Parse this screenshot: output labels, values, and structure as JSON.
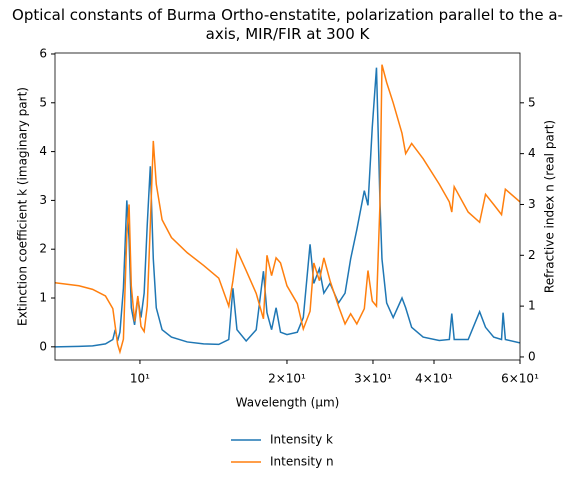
{
  "chart_data": {
    "type": "line",
    "title": "Optical constants of Burma Ortho-enstatite, polarization parallel to the a-axis, MIR/FIR at 300 K",
    "x_label": "Wavelength (μm)",
    "y_label": "Extinction coefficient k (imaginary part)",
    "y2_label": "Refractive index n (real part)",
    "x_scale": "log",
    "legend": "below",
    "xlim": [
      6.7,
      60
    ],
    "ylim": [
      -0.27,
      6.02
    ],
    "y2lim": [
      -0.06,
      5.98
    ],
    "xticks": [
      {
        "value": 10,
        "label": "10¹"
      },
      {
        "value": 20,
        "label": "2×10¹"
      },
      {
        "value": 30,
        "label": "3×10¹"
      },
      {
        "value": 40,
        "label": "4×10¹"
      },
      {
        "value": 60,
        "label": "6×10¹"
      }
    ],
    "yticks": [
      0,
      1,
      2,
      3,
      4,
      5,
      6
    ],
    "y2ticks": [
      0,
      1,
      2,
      3,
      4,
      5
    ],
    "x": [
      6.7,
      7.5,
      8.0,
      8.5,
      8.8,
      8.9,
      9.0,
      9.1,
      9.25,
      9.4,
      9.5,
      9.6,
      9.75,
      9.9,
      10.05,
      10.2,
      10.35,
      10.5,
      10.65,
      10.8,
      11.1,
      11.6,
      12.5,
      13.5,
      14.5,
      15.2,
      15.5,
      15.8,
      16.5,
      17.3,
      17.9,
      18.2,
      18.6,
      19.0,
      19.4,
      20.0,
      21.0,
      21.6,
      22.3,
      22.7,
      23.3,
      23.8,
      24.5,
      25.5,
      26.3,
      27.0,
      27.8,
      28.8,
      29.3,
      29.9,
      30.5,
      31.0,
      31.3,
      32.0,
      33.0,
      34.4,
      35.0,
      36.0,
      38.0,
      41.0,
      43.0,
      43.5,
      44.0,
      47.0,
      49.6,
      51.0,
      53.0,
      55.0,
      55.4,
      56.0,
      60.0
    ],
    "series": [
      {
        "name": "Intensity k",
        "color": "#1f77b4",
        "axis": "y",
        "values": [
          0.0,
          0.01,
          0.02,
          0.06,
          0.15,
          0.35,
          0.12,
          0.3,
          1.2,
          3.0,
          2.2,
          0.8,
          0.45,
          1.0,
          0.6,
          1.1,
          2.5,
          3.7,
          1.8,
          0.8,
          0.35,
          0.2,
          0.1,
          0.06,
          0.05,
          0.15,
          1.2,
          0.35,
          0.12,
          0.35,
          1.55,
          0.7,
          0.35,
          0.8,
          0.3,
          0.25,
          0.3,
          0.6,
          2.1,
          1.3,
          1.6,
          1.1,
          1.3,
          0.9,
          1.1,
          1.8,
          2.4,
          3.2,
          2.9,
          4.5,
          5.72,
          3.0,
          1.8,
          0.9,
          0.6,
          1.0,
          0.8,
          0.4,
          0.2,
          0.13,
          0.15,
          0.68,
          0.15,
          0.15,
          0.72,
          0.4,
          0.2,
          0.15,
          0.7,
          0.15,
          0.08
        ]
      },
      {
        "name": "Intensity n",
        "color": "#ff7f0e",
        "axis": "y2",
        "values": [
          1.46,
          1.4,
          1.33,
          1.2,
          0.95,
          0.6,
          0.25,
          0.1,
          0.35,
          2.4,
          3.0,
          1.4,
          0.7,
          1.2,
          0.6,
          0.5,
          1.0,
          2.6,
          4.25,
          3.4,
          2.7,
          2.35,
          2.05,
          1.8,
          1.55,
          1.0,
          1.5,
          2.1,
          1.7,
          1.25,
          0.75,
          2.0,
          1.6,
          1.95,
          1.85,
          1.4,
          1.05,
          0.55,
          0.9,
          1.85,
          1.5,
          1.95,
          1.5,
          1.0,
          0.65,
          0.85,
          0.65,
          0.95,
          1.7,
          1.1,
          1.0,
          3.0,
          5.75,
          5.4,
          5.0,
          4.4,
          4.0,
          4.2,
          3.9,
          3.4,
          3.05,
          2.85,
          3.35,
          2.85,
          2.65,
          3.2,
          3.0,
          2.8,
          3.0,
          3.3,
          3.05
        ]
      }
    ]
  }
}
